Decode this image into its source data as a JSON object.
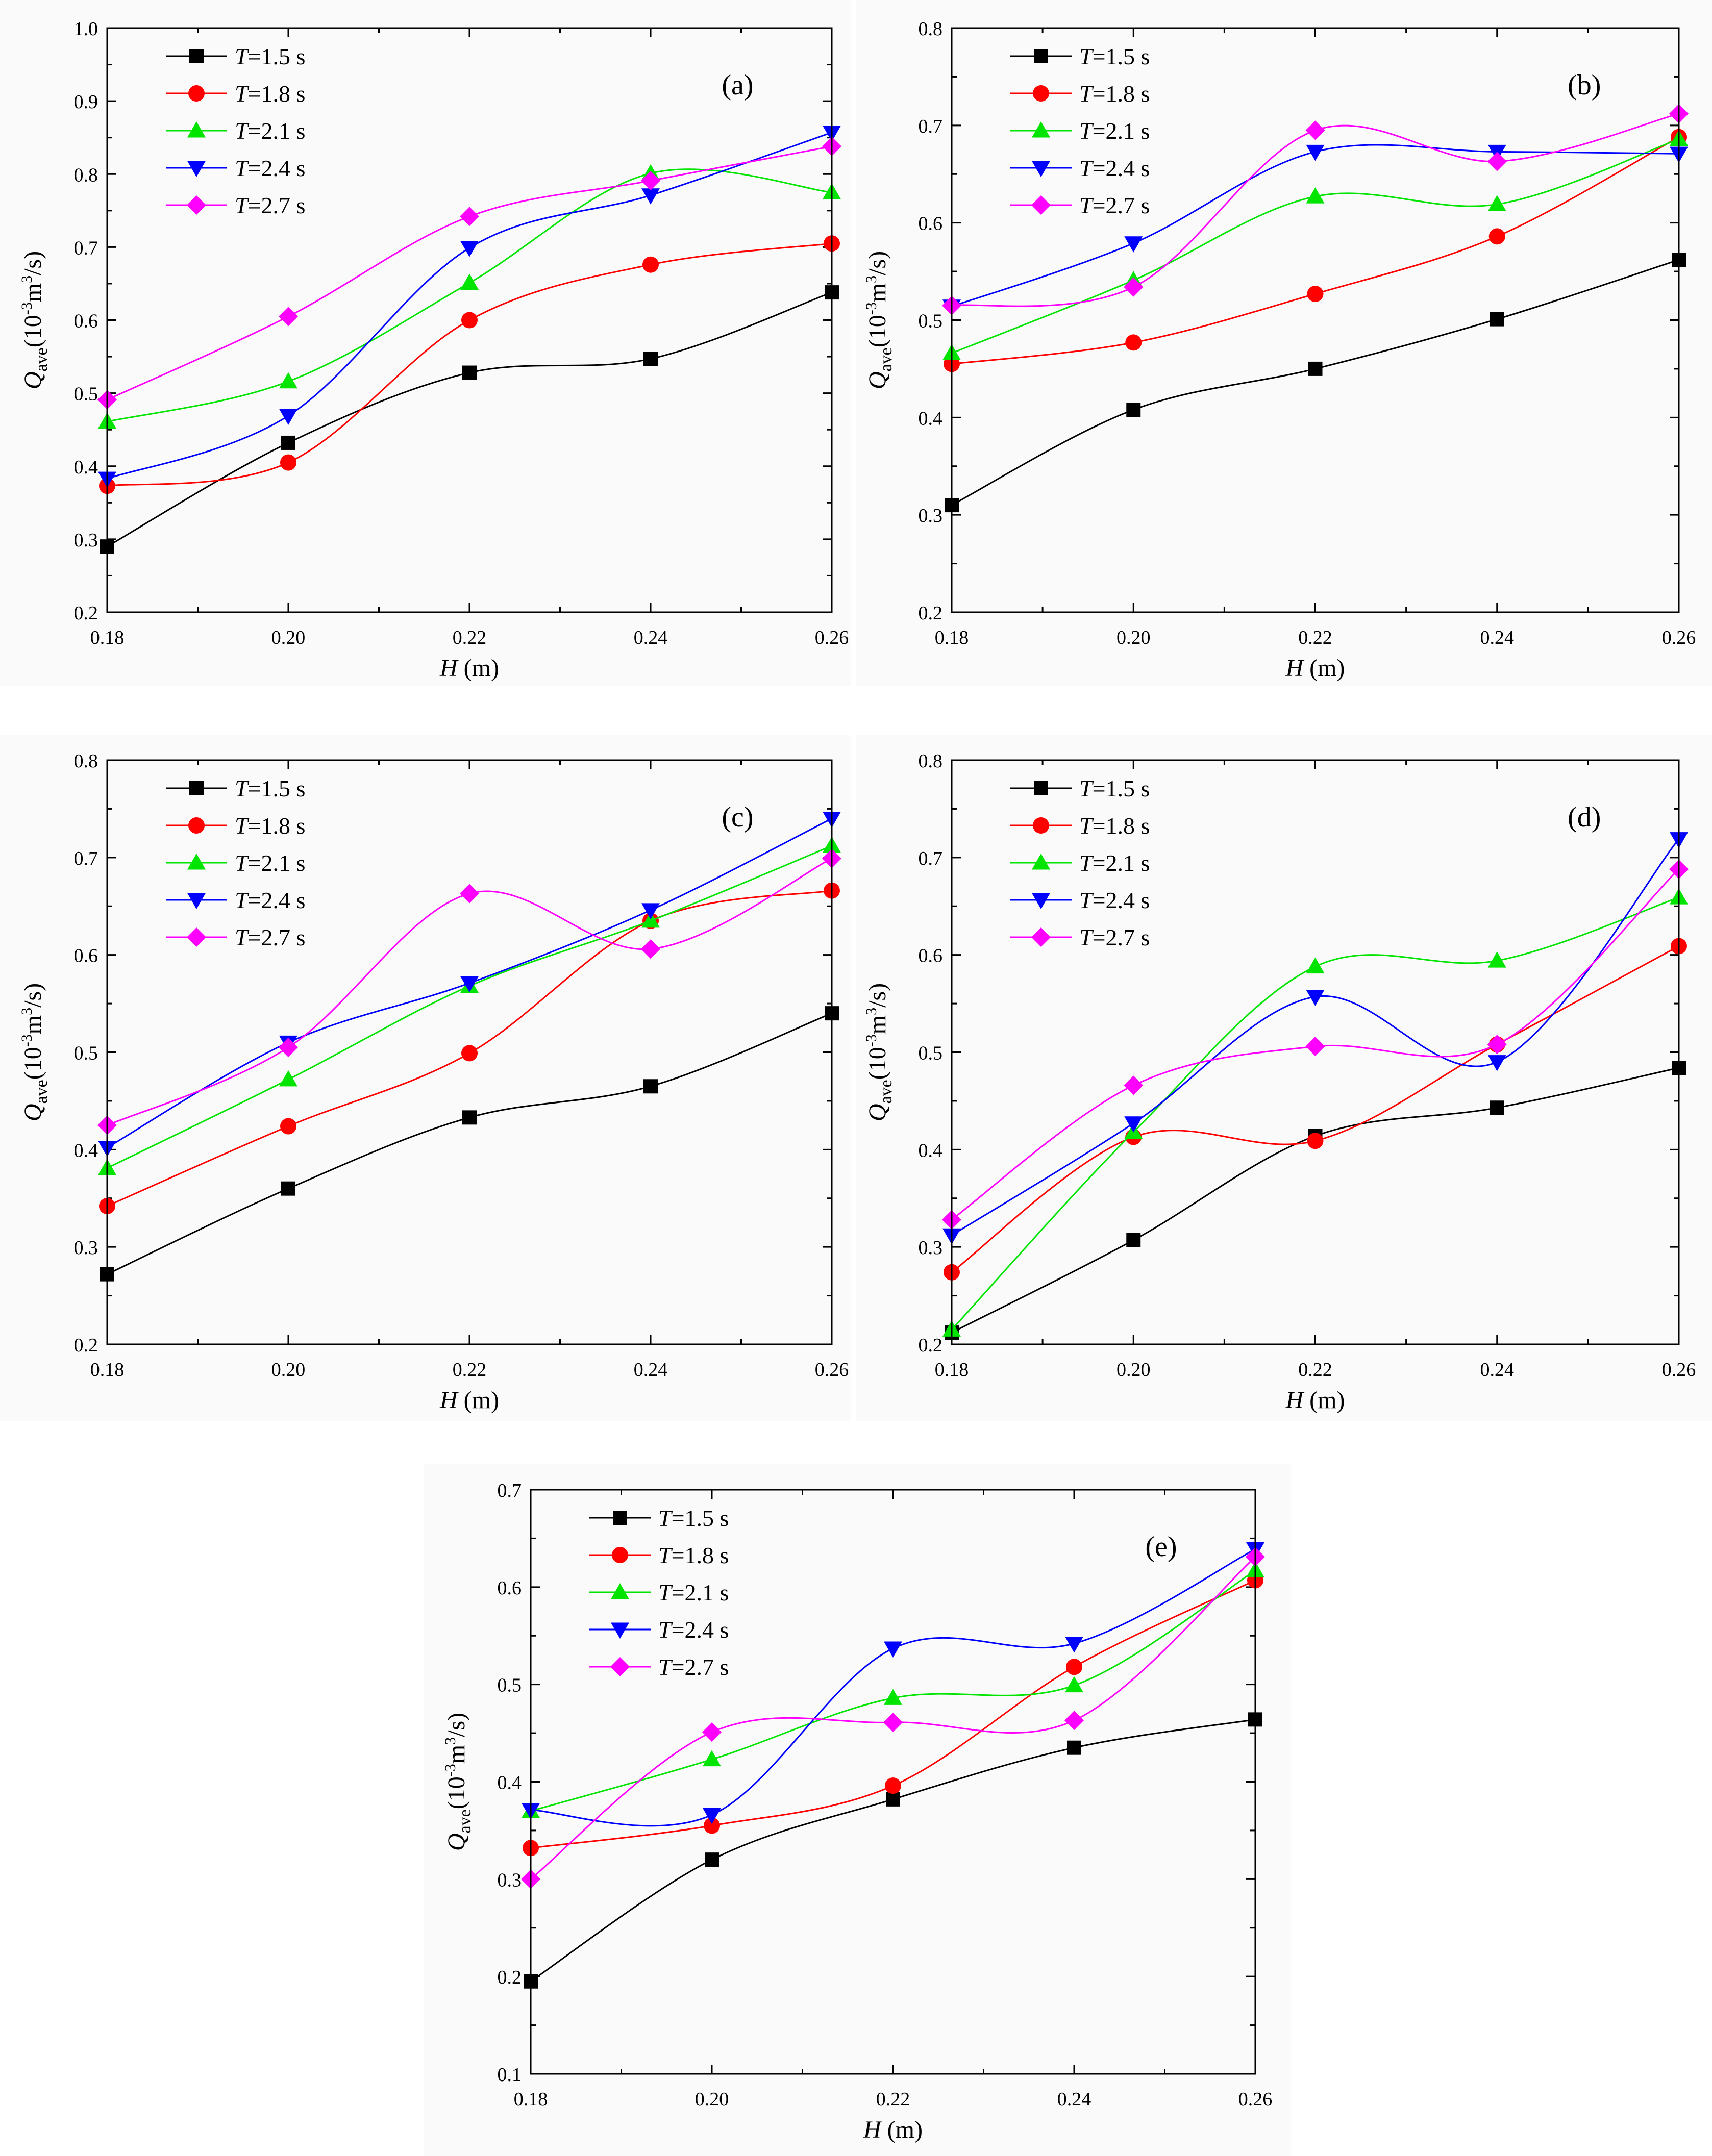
{
  "chart_data": [
    {
      "type": "line",
      "panel_label": "(a)",
      "xlabel_var": "H",
      "xlabel_unit": " (m)",
      "ylabel_main": "Q",
      "ylabel_sub": "ave",
      "ylabel_unit_a": "(10",
      "ylabel_unit_exp1": "-3",
      "ylabel_unit_b": "m",
      "ylabel_unit_exp2": "3",
      "ylabel_unit_c": "/s)",
      "x": [
        0.18,
        0.2,
        0.22,
        0.24,
        0.26
      ],
      "xticks": [
        0.18,
        0.2,
        0.22,
        0.24,
        0.26
      ],
      "xtick_labels": [
        "0.18",
        "0.20",
        "0.22",
        "0.24",
        "0.26"
      ],
      "xlim": [
        0.18,
        0.26
      ],
      "yticks": [
        0.2,
        0.3,
        0.4,
        0.5,
        0.6,
        0.7,
        0.8,
        0.9,
        1.0
      ],
      "ytick_labels": [
        "0.2",
        "0.3",
        "0.4",
        "0.5",
        "0.6",
        "0.7",
        "0.8",
        "0.9",
        "1.0"
      ],
      "ylim": [
        0.2,
        1.0
      ],
      "series": [
        {
          "name": "T=1.5 s",
          "legend_var": "T",
          "legend_rest": "=1.5 s",
          "values": [
            0.29,
            0.432,
            0.528,
            0.547,
            0.638
          ]
        },
        {
          "name": "T=1.8 s",
          "legend_var": "T",
          "legend_rest": "=1.8 s",
          "values": [
            0.373,
            0.405,
            0.6,
            0.676,
            0.705
          ]
        },
        {
          "name": "T=2.1 s",
          "legend_var": "T",
          "legend_rest": "=2.1 s",
          "values": [
            0.461,
            0.516,
            0.651,
            0.801,
            0.775
          ]
        },
        {
          "name": "T=2.4 s",
          "legend_var": "T",
          "legend_rest": "=2.4 s",
          "values": [
            0.383,
            0.469,
            0.699,
            0.771,
            0.857
          ]
        },
        {
          "name": "T=2.7 s",
          "legend_var": "T",
          "legend_rest": "=2.7 s",
          "values": [
            0.491,
            0.605,
            0.742,
            0.791,
            0.838
          ]
        }
      ]
    },
    {
      "type": "line",
      "panel_label": "(b)",
      "xlabel_var": "H",
      "xlabel_unit": " (m)",
      "ylabel_main": "Q",
      "ylabel_sub": "ave",
      "ylabel_unit_a": "(10",
      "ylabel_unit_exp1": "-3",
      "ylabel_unit_b": "m",
      "ylabel_unit_exp2": "3",
      "ylabel_unit_c": "/s)",
      "x": [
        0.18,
        0.2,
        0.22,
        0.24,
        0.26
      ],
      "xticks": [
        0.18,
        0.2,
        0.22,
        0.24,
        0.26
      ],
      "xtick_labels": [
        "0.18",
        "0.20",
        "0.22",
        "0.24",
        "0.26"
      ],
      "xlim": [
        0.18,
        0.26
      ],
      "yticks": [
        0.2,
        0.3,
        0.4,
        0.5,
        0.6,
        0.7,
        0.8
      ],
      "ytick_labels": [
        "0.2",
        "0.3",
        "0.4",
        "0.5",
        "0.6",
        "0.7",
        "0.8"
      ],
      "ylim": [
        0.2,
        0.8
      ],
      "series": [
        {
          "name": "T=1.5 s",
          "legend_var": "T",
          "legend_rest": "=1.5 s",
          "values": [
            0.31,
            0.408,
            0.45,
            0.501,
            0.562
          ]
        },
        {
          "name": "T=1.8 s",
          "legend_var": "T",
          "legend_rest": "=1.8 s",
          "values": [
            0.455,
            0.477,
            0.527,
            0.586,
            0.688
          ]
        },
        {
          "name": "T=2.1 s",
          "legend_var": "T",
          "legend_rest": "=2.1 s",
          "values": [
            0.466,
            0.541,
            0.627,
            0.619,
            0.686
          ]
        },
        {
          "name": "T=2.4 s",
          "legend_var": "T",
          "legend_rest": "=2.4 s",
          "values": [
            0.514,
            0.579,
            0.673,
            0.673,
            0.671
          ]
        },
        {
          "name": "T=2.7 s",
          "legend_var": "T",
          "legend_rest": "=2.7 s",
          "values": [
            0.515,
            0.534,
            0.695,
            0.663,
            0.712
          ]
        }
      ]
    },
    {
      "type": "line",
      "panel_label": "(c)",
      "xlabel_var": "H",
      "xlabel_unit": " (m)",
      "ylabel_main": "Q",
      "ylabel_sub": "ave",
      "ylabel_unit_a": "(10",
      "ylabel_unit_exp1": "-3",
      "ylabel_unit_b": "m",
      "ylabel_unit_exp2": "3",
      "ylabel_unit_c": "/s)",
      "x": [
        0.18,
        0.2,
        0.22,
        0.24,
        0.26
      ],
      "xticks": [
        0.18,
        0.2,
        0.22,
        0.24,
        0.26
      ],
      "xtick_labels": [
        "0.18",
        "0.20",
        "0.22",
        "0.24",
        "0.26"
      ],
      "xlim": [
        0.18,
        0.26
      ],
      "yticks": [
        0.2,
        0.3,
        0.4,
        0.5,
        0.6,
        0.7,
        0.8
      ],
      "ytick_labels": [
        "0.2",
        "0.3",
        "0.4",
        "0.5",
        "0.6",
        "0.7",
        "0.8"
      ],
      "ylim": [
        0.2,
        0.8
      ],
      "series": [
        {
          "name": "T=1.5 s",
          "legend_var": "T",
          "legend_rest": "=1.5 s",
          "values": [
            0.272,
            0.36,
            0.433,
            0.465,
            0.54
          ]
        },
        {
          "name": "T=1.8 s",
          "legend_var": "T",
          "legend_rest": "=1.8 s",
          "values": [
            0.342,
            0.424,
            0.499,
            0.635,
            0.666
          ]
        },
        {
          "name": "T=2.1 s",
          "legend_var": "T",
          "legend_rest": "=2.1 s",
          "values": [
            0.381,
            0.472,
            0.568,
            0.635,
            0.712
          ]
        },
        {
          "name": "T=2.4 s",
          "legend_var": "T",
          "legend_rest": "=2.4 s",
          "values": [
            0.402,
            0.51,
            0.571,
            0.646,
            0.74
          ]
        },
        {
          "name": "T=2.7 s",
          "legend_var": "T",
          "legend_rest": "=2.7 s",
          "values": [
            0.425,
            0.505,
            0.663,
            0.606,
            0.699
          ]
        }
      ]
    },
    {
      "type": "line",
      "panel_label": "(d)",
      "xlabel_var": "H",
      "xlabel_unit": " (m)",
      "ylabel_main": "Q",
      "ylabel_sub": "ave",
      "ylabel_unit_a": "(10",
      "ylabel_unit_exp1": "-3",
      "ylabel_unit_b": "m",
      "ylabel_unit_exp2": "3",
      "ylabel_unit_c": "/s)",
      "x": [
        0.18,
        0.2,
        0.22,
        0.24,
        0.26
      ],
      "xticks": [
        0.18,
        0.2,
        0.22,
        0.24,
        0.26
      ],
      "xtick_labels": [
        "0.18",
        "0.20",
        "0.22",
        "0.24",
        "0.26"
      ],
      "xlim": [
        0.18,
        0.26
      ],
      "yticks": [
        0.2,
        0.3,
        0.4,
        0.5,
        0.6,
        0.7,
        0.8
      ],
      "ytick_labels": [
        "0.2",
        "0.3",
        "0.4",
        "0.5",
        "0.6",
        "0.7",
        "0.8"
      ],
      "ylim": [
        0.2,
        0.8
      ],
      "series": [
        {
          "name": "T=1.5 s",
          "legend_var": "T",
          "legend_rest": "=1.5 s",
          "values": [
            0.212,
            0.307,
            0.414,
            0.443,
            0.484
          ]
        },
        {
          "name": "T=1.8 s",
          "legend_var": "T",
          "legend_rest": "=1.8 s",
          "values": [
            0.274,
            0.413,
            0.409,
            0.508,
            0.609
          ]
        },
        {
          "name": "T=2.1 s",
          "legend_var": "T",
          "legend_rest": "=2.1 s",
          "values": [
            0.215,
            0.418,
            0.588,
            0.594,
            0.659
          ]
        },
        {
          "name": "T=2.4 s",
          "legend_var": "T",
          "legend_rest": "=2.4 s",
          "values": [
            0.312,
            0.427,
            0.557,
            0.49,
            0.719
          ]
        },
        {
          "name": "T=2.7 s",
          "legend_var": "T",
          "legend_rest": "=2.7 s",
          "values": [
            0.328,
            0.466,
            0.506,
            0.508,
            0.688
          ]
        }
      ]
    },
    {
      "type": "line",
      "panel_label": "(e)",
      "xlabel_var": "H",
      "xlabel_unit": " (m)",
      "ylabel_main": "Q",
      "ylabel_sub": "ave",
      "ylabel_unit_a": "(10",
      "ylabel_unit_exp1": "-3",
      "ylabel_unit_b": "m",
      "ylabel_unit_exp2": "3",
      "ylabel_unit_c": "/s)",
      "x": [
        0.18,
        0.2,
        0.22,
        0.24,
        0.26
      ],
      "xticks": [
        0.18,
        0.2,
        0.22,
        0.24,
        0.26
      ],
      "xtick_labels": [
        "0.18",
        "0.20",
        "0.22",
        "0.24",
        "0.26"
      ],
      "xlim": [
        0.18,
        0.26
      ],
      "yticks": [
        0.1,
        0.2,
        0.3,
        0.4,
        0.5,
        0.6,
        0.7
      ],
      "ytick_labels": [
        "0.1",
        "0.2",
        "0.3",
        "0.4",
        "0.5",
        "0.6",
        "0.7"
      ],
      "ylim": [
        0.1,
        0.7
      ],
      "series": [
        {
          "name": "T=1.5 s",
          "legend_var": "T",
          "legend_rest": "=1.5 s",
          "values": [
            0.195,
            0.32,
            0.382,
            0.435,
            0.464
          ]
        },
        {
          "name": "T=1.8 s",
          "legend_var": "T",
          "legend_rest": "=1.8 s",
          "values": [
            0.332,
            0.355,
            0.396,
            0.518,
            0.607
          ]
        },
        {
          "name": "T=2.1 s",
          "legend_var": "T",
          "legend_rest": "=2.1 s",
          "values": [
            0.37,
            0.423,
            0.486,
            0.499,
            0.617
          ]
        },
        {
          "name": "T=2.4 s",
          "legend_var": "T",
          "legend_rest": "=2.4 s",
          "values": [
            0.371,
            0.366,
            0.537,
            0.542,
            0.639
          ]
        },
        {
          "name": "T=2.7 s",
          "legend_var": "T",
          "legend_rest": "=2.7 s",
          "values": [
            0.3,
            0.451,
            0.461,
            0.463,
            0.631
          ]
        }
      ]
    }
  ],
  "series_styles": [
    {
      "color": "#000000",
      "marker": "square"
    },
    {
      "color": "#ff0000",
      "marker": "circle"
    },
    {
      "color": "#00e400",
      "marker": "triangle-up"
    },
    {
      "color": "#0000ff",
      "marker": "triangle-down"
    },
    {
      "color": "#ff00ff",
      "marker": "diamond"
    }
  ]
}
